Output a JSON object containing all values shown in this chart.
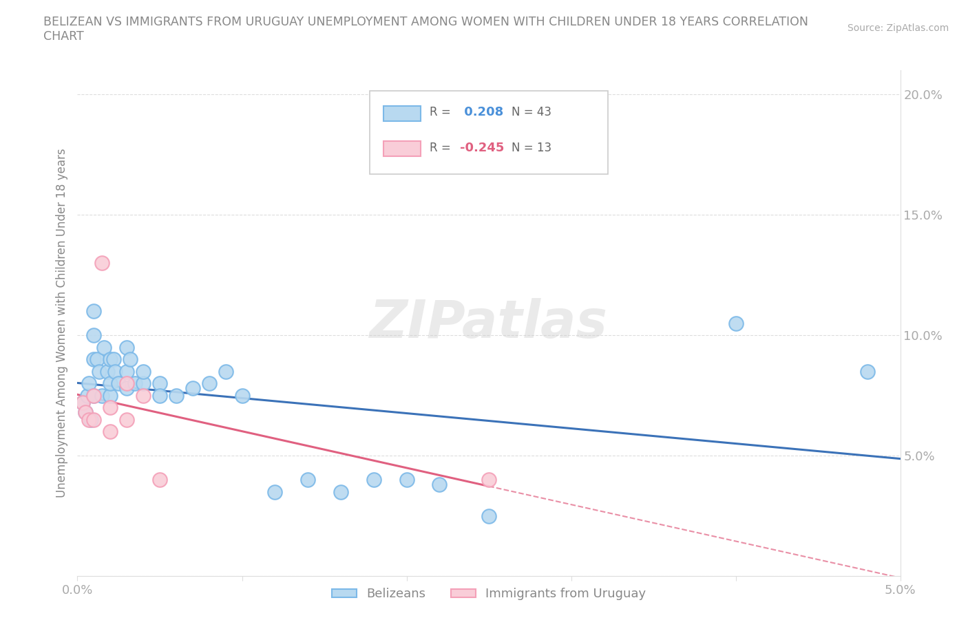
{
  "title": "BELIZEAN VS IMMIGRANTS FROM URUGUAY UNEMPLOYMENT AMONG WOMEN WITH CHILDREN UNDER 18 YEARS CORRELATION\nCHART",
  "source": "Source: ZipAtlas.com",
  "ylabel": "Unemployment Among Women with Children Under 18 years",
  "xlim": [
    0.0,
    0.05
  ],
  "ylim": [
    0.0,
    0.21
  ],
  "x_ticks": [
    0.0,
    0.01,
    0.02,
    0.03,
    0.04,
    0.05
  ],
  "x_tick_labels": [
    "0.0%",
    "",
    "",
    "",
    "",
    "5.0%"
  ],
  "y_ticks": [
    0.0,
    0.05,
    0.1,
    0.15,
    0.2
  ],
  "y_tick_labels": [
    "",
    "5.0%",
    "10.0%",
    "15.0%",
    "20.0%"
  ],
  "belizean_color": "#7cb9e8",
  "belizean_color_fill": "#b8d9f0",
  "uruguay_color": "#f4a0b8",
  "uruguay_color_fill": "#f9cdd8",
  "legend_R_belizean": "0.208",
  "legend_N_belizean": "43",
  "legend_R_uruguay": "-0.245",
  "legend_N_uruguay": "13",
  "trend_belizean_color": "#3b72b8",
  "trend_uruguay_color": "#e06080",
  "watermark": "ZIPatlas",
  "belizean_x": [
    0.0003,
    0.0005,
    0.0006,
    0.0007,
    0.0008,
    0.001,
    0.001,
    0.001,
    0.001,
    0.0012,
    0.0013,
    0.0015,
    0.0016,
    0.0018,
    0.002,
    0.002,
    0.002,
    0.0022,
    0.0023,
    0.0025,
    0.003,
    0.003,
    0.003,
    0.0032,
    0.0035,
    0.004,
    0.004,
    0.005,
    0.005,
    0.006,
    0.007,
    0.008,
    0.009,
    0.01,
    0.012,
    0.014,
    0.016,
    0.018,
    0.02,
    0.022,
    0.025,
    0.04,
    0.048
  ],
  "belizean_y": [
    0.072,
    0.068,
    0.075,
    0.08,
    0.065,
    0.11,
    0.1,
    0.09,
    0.075,
    0.09,
    0.085,
    0.075,
    0.095,
    0.085,
    0.075,
    0.08,
    0.09,
    0.09,
    0.085,
    0.08,
    0.095,
    0.085,
    0.078,
    0.09,
    0.08,
    0.08,
    0.085,
    0.08,
    0.075,
    0.075,
    0.078,
    0.08,
    0.085,
    0.075,
    0.035,
    0.04,
    0.035,
    0.04,
    0.04,
    0.038,
    0.025,
    0.105,
    0.085
  ],
  "uruguay_x": [
    0.0003,
    0.0005,
    0.0007,
    0.001,
    0.001,
    0.0015,
    0.002,
    0.002,
    0.003,
    0.003,
    0.004,
    0.005,
    0.025
  ],
  "uruguay_y": [
    0.072,
    0.068,
    0.065,
    0.075,
    0.065,
    0.13,
    0.07,
    0.06,
    0.08,
    0.065,
    0.075,
    0.04,
    0.04
  ],
  "background_color": "#ffffff",
  "grid_color": "#dddddd",
  "title_color": "#888888",
  "axis_label_color": "#888888",
  "tick_color": "#aaaaaa",
  "legend_R_color_belizean": "#4a90d9",
  "legend_R_color_uruguay": "#e06080"
}
